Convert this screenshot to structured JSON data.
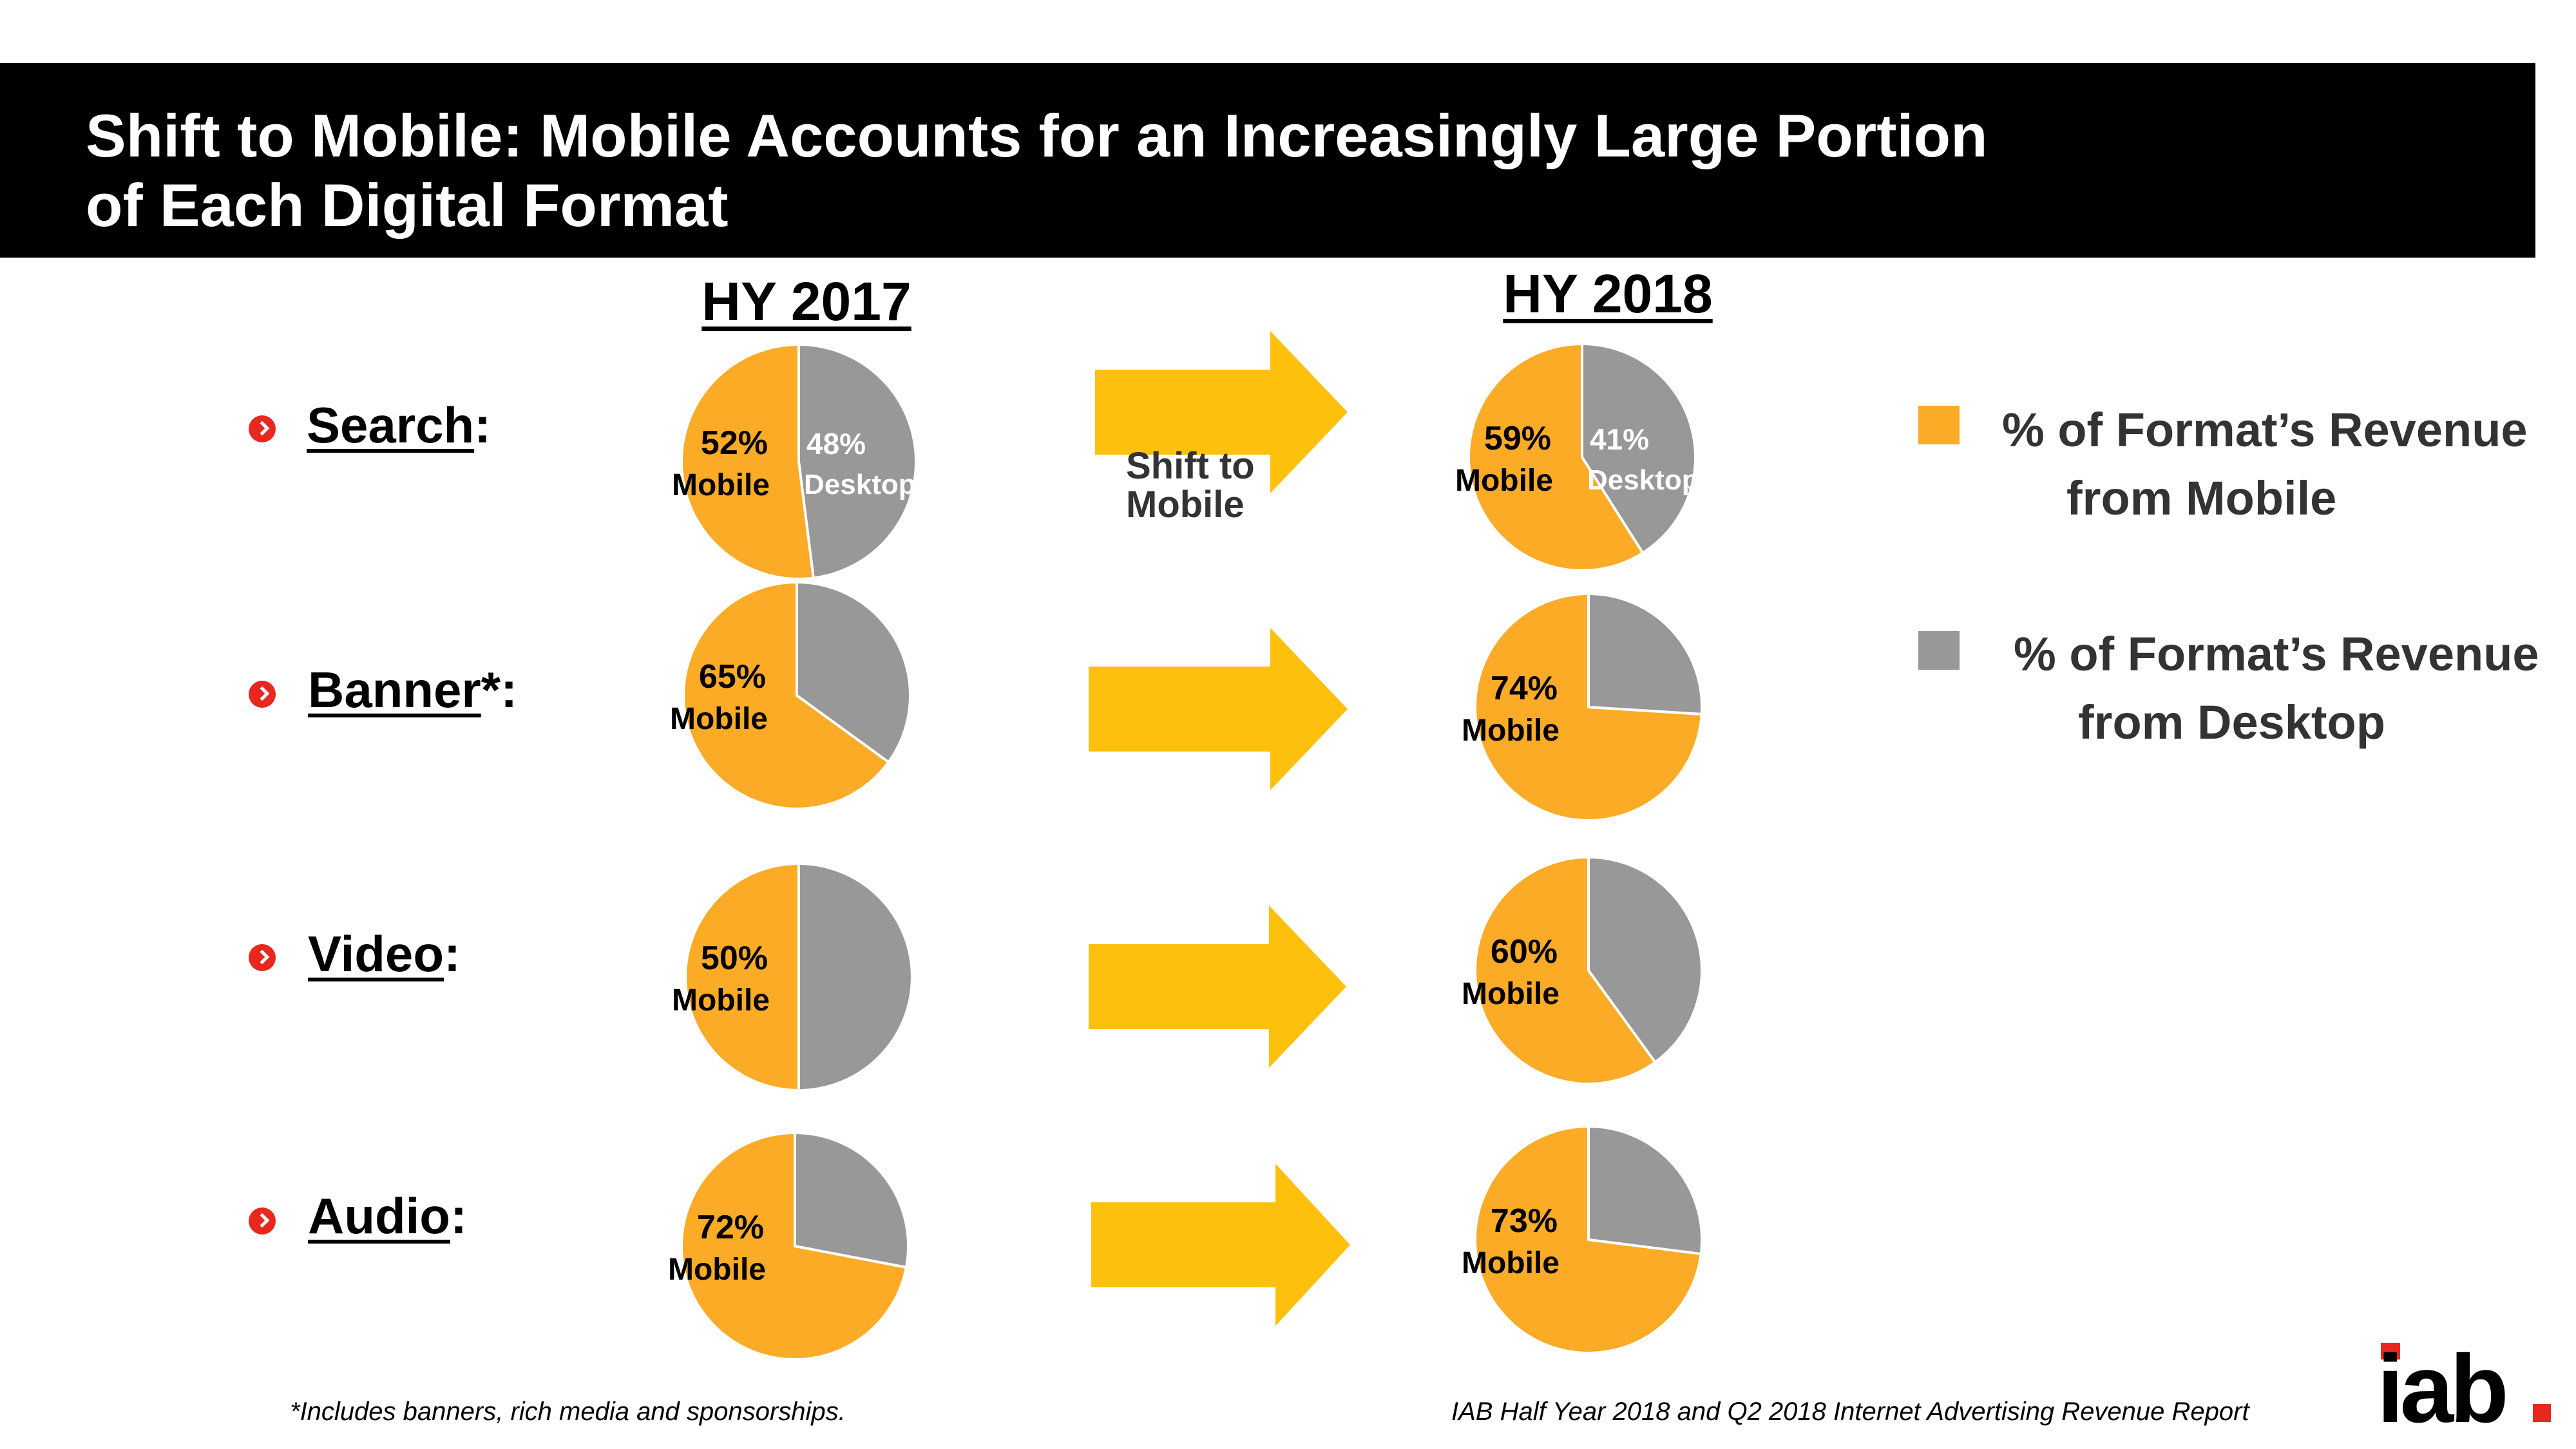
{
  "title": {
    "line1": "Shift to Mobile:  Mobile Accounts for an Increasingly Large Portion",
    "line2": "of Each Digital Format"
  },
  "columns": {
    "left": "HY 2017",
    "right": "HY 2018"
  },
  "rows": [
    {
      "name": "Search",
      "suffix": ":"
    },
    {
      "name": "Banner",
      "suffix": "*:"
    },
    {
      "name": "Video",
      "suffix": ":"
    },
    {
      "name": "Audio",
      "suffix": ":"
    }
  ],
  "arrow_label": {
    "line1": "Shift to",
    "line2": "Mobile"
  },
  "legend": {
    "mobile": {
      "line1": "% of Format’s Revenue",
      "line2": "from Mobile"
    },
    "desktop": {
      "line1": "% of Format’s Revenue",
      "line2": "from Desktop"
    }
  },
  "footnote": "*Includes banners, rich media and sponsorships.",
  "source": "IAB Half Year 2018 and Q2 2018 Internet Advertising Revenue Report",
  "logo": "iab.",
  "colors": {
    "mobile": "#fbab26",
    "desktop": "#989898",
    "arrow": "#fdc00d",
    "bullet": "#e8281e",
    "logo_dot": "#e8281e"
  },
  "chart_data": {
    "type": "pie",
    "series": [
      {
        "name": "Search",
        "HY 2017": {
          "mobile": 52,
          "desktop": 48
        },
        "HY 2018": {
          "mobile": 59,
          "desktop": 41
        }
      },
      {
        "name": "Banner",
        "HY 2017": {
          "mobile": 65,
          "desktop": 35
        },
        "HY 2018": {
          "mobile": 74,
          "desktop": 26
        }
      },
      {
        "name": "Video",
        "HY 2017": {
          "mobile": 50,
          "desktop": 50
        },
        "HY 2018": {
          "mobile": 60,
          "desktop": 40
        }
      },
      {
        "name": "Audio",
        "HY 2017": {
          "mobile": 72,
          "desktop": 28
        },
        "HY 2018": {
          "mobile": 73,
          "desktop": 27
        }
      }
    ],
    "slice_labels": {
      "Search": {
        "HY 2017": {
          "mobile_pct": "52%",
          "mobile_label": "Mobile",
          "desktop_pct": "48%",
          "desktop_label": "Desktop"
        },
        "HY 2018": {
          "mobile_pct": "59%",
          "mobile_label": "Mobile",
          "desktop_pct": "41%",
          "desktop_label": "Desktop"
        }
      },
      "Banner": {
        "HY 2017": {
          "mobile_pct": "65%",
          "mobile_label": "Mobile"
        },
        "HY 2018": {
          "mobile_pct": "74%",
          "mobile_label": "Mobile"
        }
      },
      "Video": {
        "HY 2017": {
          "mobile_pct": "50%",
          "mobile_label": "Mobile"
        },
        "HY 2018": {
          "mobile_pct": "60%",
          "mobile_label": "Mobile"
        }
      },
      "Audio": {
        "HY 2017": {
          "mobile_pct": "72%",
          "mobile_label": "Mobile"
        },
        "HY 2018": {
          "mobile_pct": "73%",
          "mobile_label": "Mobile"
        }
      }
    },
    "legend_placement": "right"
  }
}
